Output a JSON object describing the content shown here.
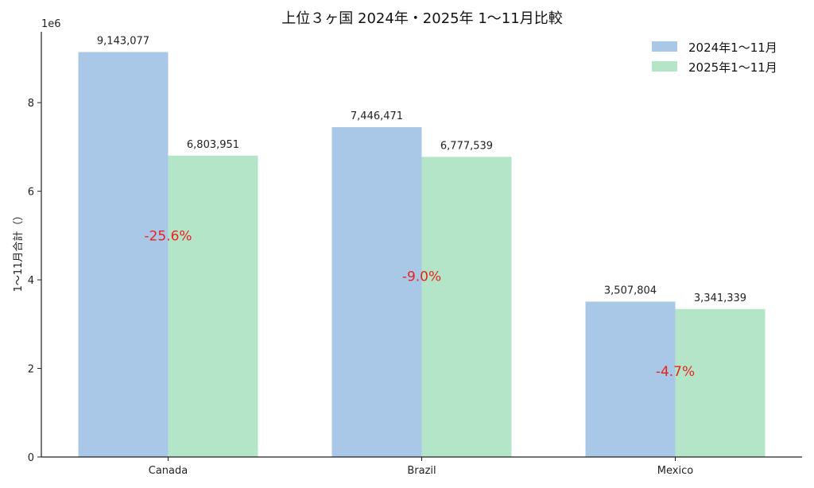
{
  "chart_data": {
    "type": "bar",
    "title": "上位３ヶ国 2024年・2025年 1〜11月比較",
    "ylabel": "1〜11月合計（）",
    "xlabel": "",
    "y_offset_label": "1e6",
    "categories": [
      "Canada",
      "Brazil",
      "Mexico"
    ],
    "series": [
      {
        "name": "2024年1〜11月",
        "color": "#a9c8e8",
        "values": [
          9143077,
          7446471,
          3507804
        ]
      },
      {
        "name": "2025年1〜11月",
        "color": "#b5e5c8",
        "values": [
          6803951,
          6777539,
          3341339
        ]
      }
    ],
    "value_labels": [
      [
        "9,143,077",
        "7,446,471",
        "3,507,804"
      ],
      [
        "6,803,951",
        "6,777,539",
        "3,341,339"
      ]
    ],
    "change_labels": [
      "-25.6%",
      "-9.0%",
      "-4.7%"
    ],
    "change_label_color": "#e8231d",
    "change_label_y": [
      5000000,
      4080000,
      1940000
    ],
    "ylim": [
      0,
      9600000
    ],
    "yticks": [
      0,
      2000000,
      4000000,
      6000000,
      8000000
    ],
    "ytick_labels": [
      "0",
      "2",
      "4",
      "6",
      "8"
    ],
    "grid": false,
    "legend_position": "top-right"
  }
}
